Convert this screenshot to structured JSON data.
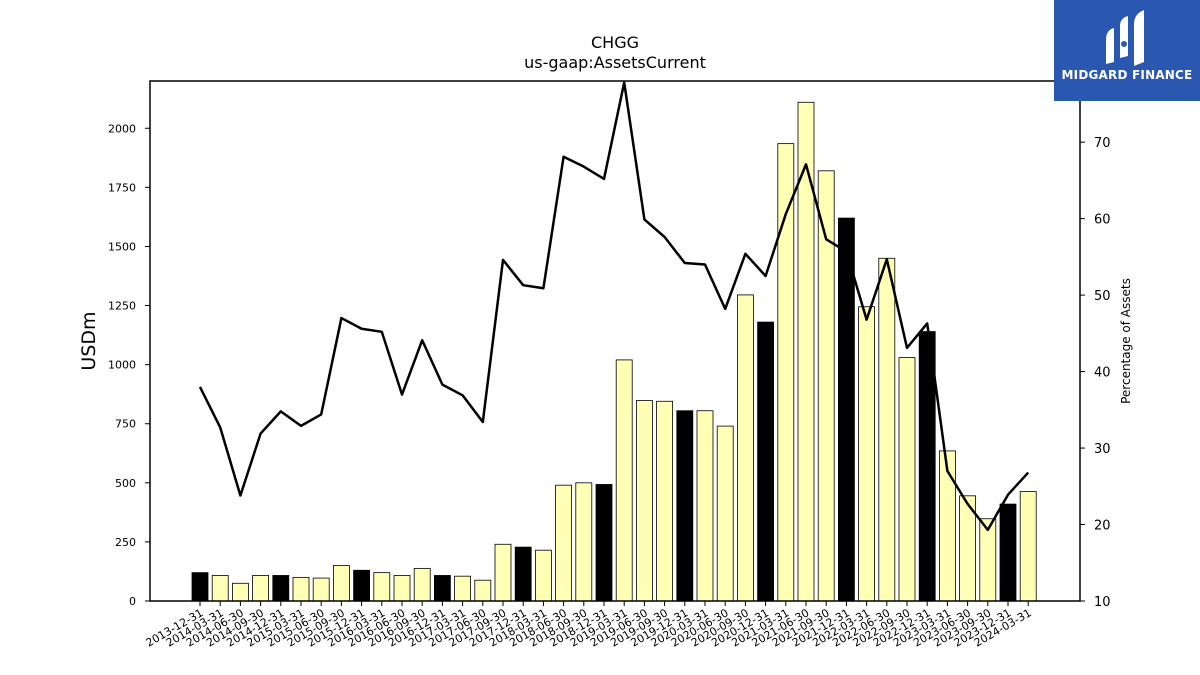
{
  "logo": {
    "text": "MIDGARD FINANCE",
    "bg_color": "#2a57b0"
  },
  "chart_data": {
    "type": "bar",
    "title": "CHGG",
    "subtitle": "us-gaap:AssetsCurrent",
    "ylabel": "USDm",
    "y2label": "Percentage of Assets",
    "ylim": [
      0,
      2200
    ],
    "y2lim": [
      10,
      78
    ],
    "yticks": [
      0,
      250,
      500,
      750,
      1000,
      1250,
      1500,
      1750,
      2000
    ],
    "y2ticks": [
      10,
      20,
      30,
      40,
      50,
      60,
      70
    ],
    "categories": [
      "2013-12-31",
      "2014-03-31",
      "2014-06-30",
      "2014-09-30",
      "2014-12-31",
      "2015-03-31",
      "2015-06-30",
      "2015-09-30",
      "2015-12-31",
      "2016-03-31",
      "2016-06-30",
      "2016-09-30",
      "2016-12-31",
      "2017-03-31",
      "2017-06-30",
      "2017-09-30",
      "2017-12-31",
      "2018-03-31",
      "2018-06-30",
      "2018-09-30",
      "2018-12-31",
      "2019-03-31",
      "2019-06-30",
      "2019-09-30",
      "2019-12-31",
      "2020-03-31",
      "2020-06-30",
      "2020-09-30",
      "2020-12-31",
      "2021-03-31",
      "2021-06-30",
      "2021-09-30",
      "2021-12-31",
      "2022-03-31",
      "2022-06-30",
      "2022-09-30",
      "2022-12-31",
      "2023-03-31",
      "2023-06-30",
      "2023-09-30",
      "2023-12-31",
      "2024-03-31"
    ],
    "series": [
      {
        "type": "bar",
        "values": [
          120,
          108,
          75,
          108,
          108,
          100,
          97,
          150,
          130,
          120,
          108,
          138,
          108,
          105,
          88,
          240,
          228,
          215,
          490,
          500,
          493,
          1020,
          848,
          845,
          805,
          805,
          740,
          1295,
          1180,
          1935,
          2110,
          1820,
          1620,
          1245,
          1450,
          1030,
          1140,
          635,
          445,
          348,
          410,
          463
        ],
        "fill": "#ffffb5",
        "year_end_fill": "#000000"
      },
      {
        "type": "line",
        "values": [
          38,
          32.7,
          23.8,
          31.9,
          34.8,
          32.9,
          34.4,
          47,
          45.6,
          45.2,
          37,
          44.1,
          38.3,
          36.9,
          33.4,
          54.6,
          51.3,
          50.9,
          68.1,
          66.8,
          65.2,
          77.8,
          59.9,
          57.6,
          54.2,
          54,
          48.2,
          55.4,
          52.5,
          60.6,
          67.1,
          57.3,
          55.7,
          46.8,
          54.7,
          43.1,
          46.3,
          27,
          22.7,
          19.3,
          23.9,
          26.8
        ],
        "axis": "right",
        "color": "#000000"
      }
    ],
    "grid": false
  }
}
